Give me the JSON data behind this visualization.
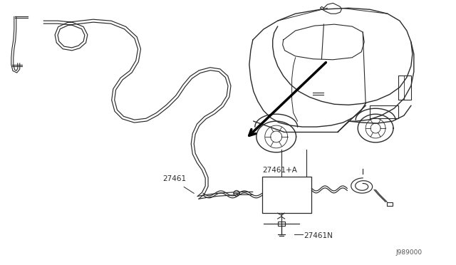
{
  "bg_color": "#ffffff",
  "line_color": "#2a2a2a",
  "label_color": "#2a2a2a",
  "part_number_main": "27461",
  "part_number_a": "27461+A",
  "part_number_n": "27461N",
  "diagram_id": "J989000",
  "lw_main": 1.0,
  "lw_thick": 1.4,
  "lw_thin": 0.7
}
